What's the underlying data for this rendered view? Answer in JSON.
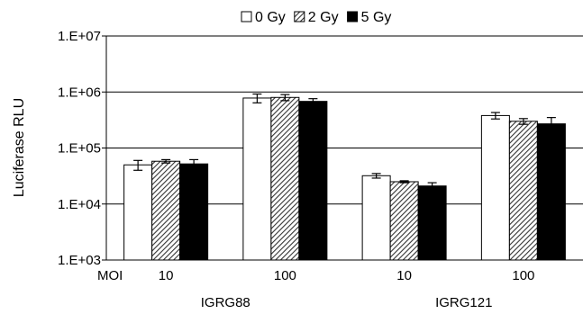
{
  "chart_data": {
    "type": "bar",
    "scale": "log",
    "ylabel": "Luciferase RLU",
    "ylim": [
      1000,
      10000000
    ],
    "yticks": [
      {
        "value": 1000,
        "label": "1.E+03"
      },
      {
        "value": 10000,
        "label": "1.E+04"
      },
      {
        "value": 100000,
        "label": "1.E+05"
      },
      {
        "value": 1000000,
        "label": "1.E+06"
      },
      {
        "value": 10000000,
        "label": "1.E+07"
      }
    ],
    "grid": true,
    "legend_position": "top",
    "x_axis_prefix": "MOI",
    "categories": [
      "10",
      "100",
      "10",
      "100"
    ],
    "groups": [
      {
        "label": "IGRG88",
        "category_indices": [
          0,
          1
        ]
      },
      {
        "label": "IGRG121",
        "category_indices": [
          2,
          3
        ]
      }
    ],
    "series": [
      {
        "name": "0 Gy",
        "style": "white",
        "values": [
          50000,
          780000,
          32000,
          380000
        ],
        "errors": [
          10000,
          140000,
          3000,
          50000
        ]
      },
      {
        "name": "2 Gy",
        "style": "hatched",
        "values": [
          58000,
          800000,
          25000,
          300000
        ],
        "errors": [
          4000,
          100000,
          1000,
          35000
        ]
      },
      {
        "name": "5 Gy",
        "style": "black",
        "values": [
          52000,
          680000,
          21000,
          270000
        ],
        "errors": [
          10000,
          80000,
          3000,
          80000
        ]
      }
    ]
  }
}
